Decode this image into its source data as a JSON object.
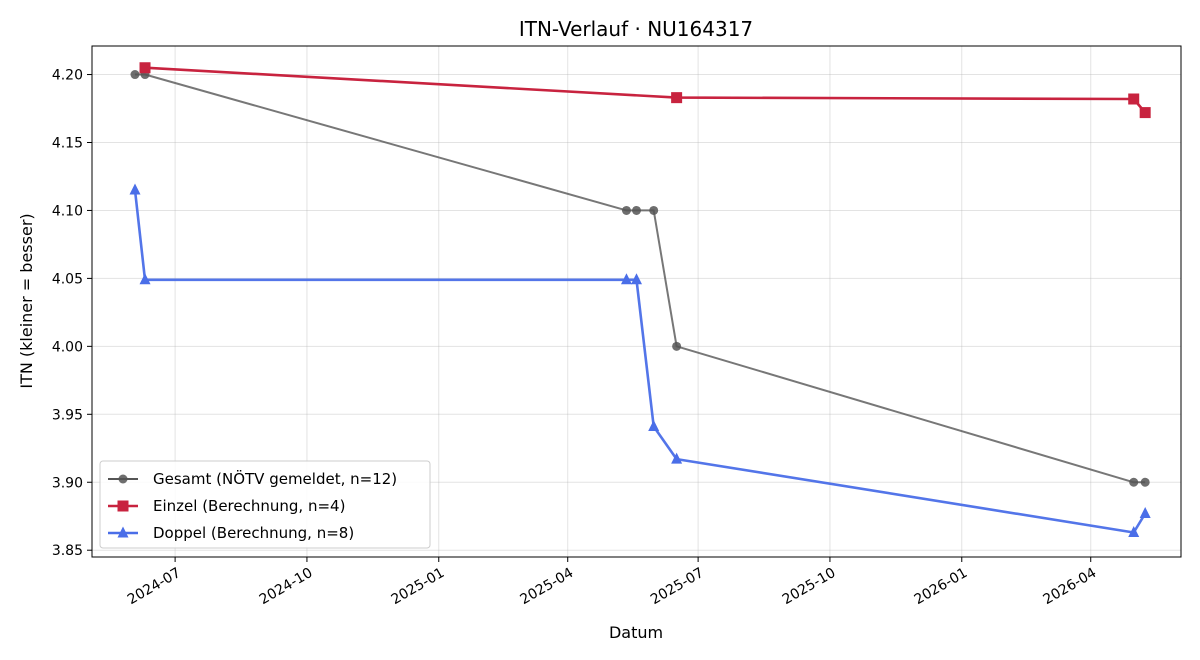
{
  "chart_data": {
    "type": "line",
    "title": "ITN-Verlauf · NU164317",
    "xlabel": "Datum",
    "ylabel": "ITN  (kleiner = besser)",
    "x_ticks": [
      "2024-07",
      "2024-10",
      "2025-01",
      "2025-04",
      "2025-07",
      "2025-10",
      "2026-01",
      "2026-04"
    ],
    "xlim": [
      "2024-05-04",
      "2026-06-03"
    ],
    "y_ticks": [
      3.85,
      3.9,
      3.95,
      4.0,
      4.05,
      4.1,
      4.15,
      4.2
    ],
    "ylim": [
      3.845,
      4.221
    ],
    "grid": true,
    "legend_position": "lower-left",
    "series": [
      {
        "name": "Gesamt (NÖTV gemeldet, n=12)",
        "color": "#555555",
        "marker": "circle",
        "points": [
          {
            "x": "2024-06-03",
            "y": 4.2
          },
          {
            "x": "2024-06-10",
            "y": 4.2
          },
          {
            "x": "2025-05-12",
            "y": 4.1
          },
          {
            "x": "2025-05-19",
            "y": 4.1
          },
          {
            "x": "2025-05-31",
            "y": 4.1
          },
          {
            "x": "2025-06-16",
            "y": 4.0
          },
          {
            "x": "2026-05-01",
            "y": 3.9
          },
          {
            "x": "2026-05-09",
            "y": 3.9
          }
        ]
      },
      {
        "name": "Einzel (Berechnung, n=4)",
        "color": "#c8233f",
        "marker": "square",
        "points": [
          {
            "x": "2024-06-10",
            "y": 4.205
          },
          {
            "x": "2025-06-16",
            "y": 4.183
          },
          {
            "x": "2026-05-01",
            "y": 4.182
          },
          {
            "x": "2026-05-09",
            "y": 4.172
          }
        ]
      },
      {
        "name": "Doppel (Berechnung, n=8)",
        "color": "#4a6ee8",
        "marker": "triangle",
        "points": [
          {
            "x": "2024-06-03",
            "y": 4.115
          },
          {
            "x": "2024-06-10",
            "y": 4.049
          },
          {
            "x": "2025-05-12",
            "y": 4.049
          },
          {
            "x": "2025-05-19",
            "y": 4.049
          },
          {
            "x": "2025-05-31",
            "y": 3.941
          },
          {
            "x": "2025-06-16",
            "y": 3.917
          },
          {
            "x": "2026-05-01",
            "y": 3.863
          },
          {
            "x": "2026-05-09",
            "y": 3.877
          }
        ]
      }
    ]
  }
}
